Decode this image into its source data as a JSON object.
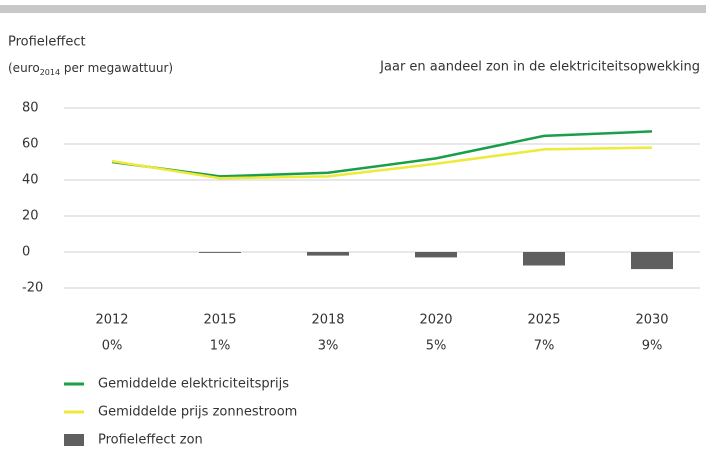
{
  "chart_data": {
    "type": "bar-line",
    "title": "Profieleffect",
    "unit": {
      "pre": "(euro",
      "sub": "2014",
      "post": " per megawattuur)"
    },
    "x_label": "Jaar en aandeel zon in de elektriciteitsopwekking",
    "categories": [
      "2012",
      "2015",
      "2018",
      "2020",
      "2025",
      "2030"
    ],
    "shares": [
      "0%",
      "1%",
      "3%",
      "5%",
      "7%",
      "9%"
    ],
    "series": [
      {
        "name": "Gemiddelde elektriciteitsprijs",
        "kind": "line",
        "color": "#1a9e4a",
        "values": [
          50,
          42,
          44,
          52,
          64.5,
          67
        ]
      },
      {
        "name": "Gemiddelde prijs zonnestroom",
        "kind": "line",
        "color": "#eeea3a",
        "values": [
          50.5,
          41,
          42,
          49,
          57,
          58
        ]
      },
      {
        "name": "Profieleffect zon",
        "kind": "bar",
        "color": "#5f5f5f",
        "values": [
          0,
          -0.5,
          -2,
          -3,
          -7.5,
          -9.5
        ]
      }
    ],
    "ylim": [
      -20,
      80
    ],
    "yticks": [
      -20,
      0,
      20,
      40,
      60,
      80
    ],
    "grid": true
  }
}
